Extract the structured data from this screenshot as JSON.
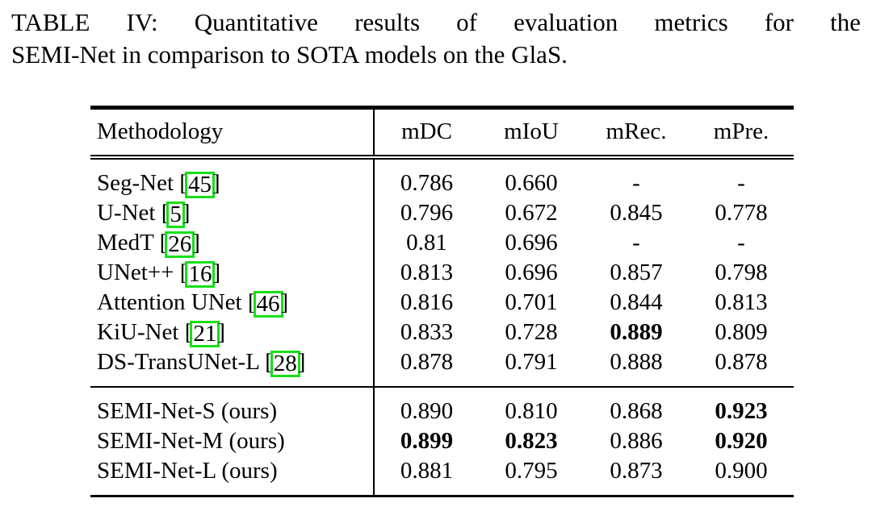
{
  "caption": {
    "line1": "TABLE IV: Quantitative results of evaluation metrics for the",
    "line2": "SEMI-Net in comparison to SOTA models on the GlaS."
  },
  "table": {
    "headers": [
      "Methodology",
      "mDC",
      "mIoU",
      "mRec.",
      "mPre."
    ],
    "citation_box_color": "#17DF17",
    "missing_value_symbol": "-",
    "groups": [
      {
        "name": "sota-models",
        "rows": [
          {
            "method": "Seg-Net",
            "cite": "45",
            "values": [
              "0.786",
              "0.660",
              "-",
              "-"
            ],
            "bold": [
              false,
              false,
              false,
              false
            ]
          },
          {
            "method": "U-Net",
            "cite": "5",
            "values": [
              "0.796",
              "0.672",
              "0.845",
              "0.778"
            ],
            "bold": [
              false,
              false,
              false,
              false
            ]
          },
          {
            "method": "MedT",
            "cite": "26",
            "values": [
              "0.81",
              "0.696",
              "-",
              "-"
            ],
            "bold": [
              false,
              false,
              false,
              false
            ]
          },
          {
            "method": "UNet++",
            "cite": "16",
            "values": [
              "0.813",
              "0.696",
              "0.857",
              "0.798"
            ],
            "bold": [
              false,
              false,
              false,
              false
            ]
          },
          {
            "method": "Attention UNet",
            "cite": "46",
            "values": [
              "0.816",
              "0.701",
              "0.844",
              "0.813"
            ],
            "bold": [
              false,
              false,
              false,
              false
            ]
          },
          {
            "method": "KiU-Net",
            "cite": "21",
            "values": [
              "0.833",
              "0.728",
              "0.889",
              "0.809"
            ],
            "bold": [
              false,
              false,
              true,
              false
            ]
          },
          {
            "method": "DS-TransUNet-L",
            "cite": "28",
            "values": [
              "0.878",
              "0.791",
              "0.888",
              "0.878"
            ],
            "bold": [
              false,
              false,
              false,
              false
            ]
          }
        ]
      },
      {
        "name": "ours",
        "rows": [
          {
            "method": "SEMI-Net-S (ours)",
            "cite": null,
            "values": [
              "0.890",
              "0.810",
              "0.868",
              "0.923"
            ],
            "bold": [
              false,
              false,
              false,
              true
            ]
          },
          {
            "method": "SEMI-Net-M (ours)",
            "cite": null,
            "values": [
              "0.899",
              "0.823",
              "0.886",
              "0.920"
            ],
            "bold": [
              true,
              true,
              false,
              true
            ]
          },
          {
            "method": "SEMI-Net-L (ours)",
            "cite": null,
            "values": [
              "0.881",
              "0.795",
              "0.873",
              "0.900"
            ],
            "bold": [
              false,
              false,
              false,
              false
            ]
          }
        ]
      }
    ]
  }
}
